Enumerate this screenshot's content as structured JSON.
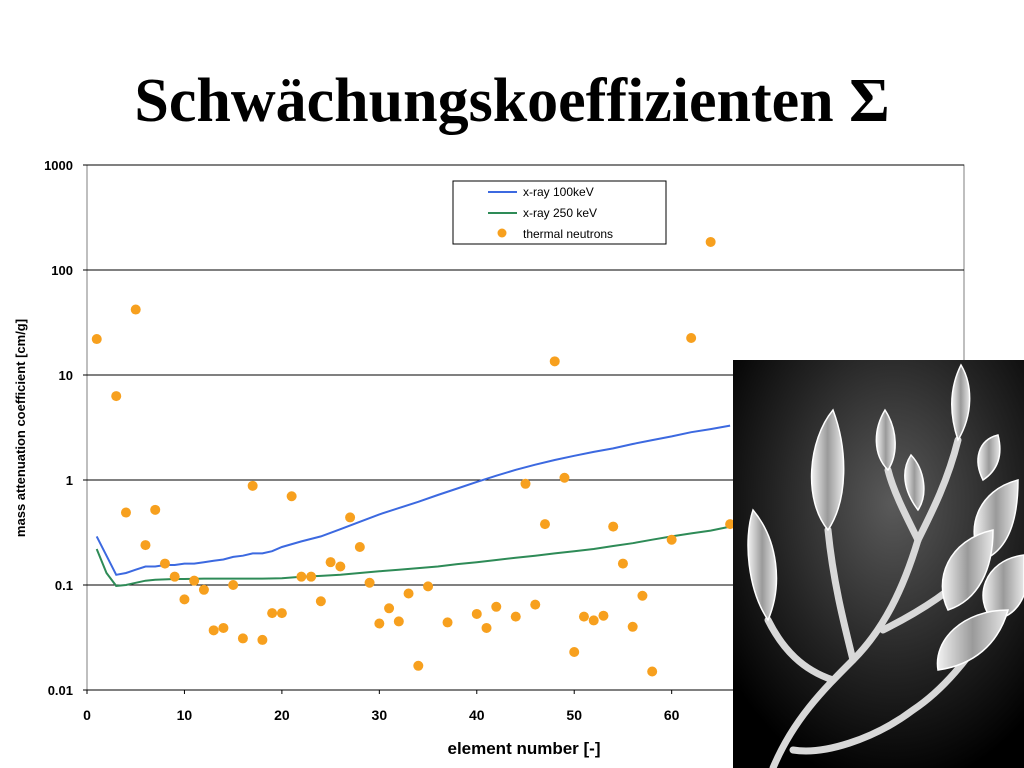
{
  "slide": {
    "title": "Schwächungskoeffizienten Σ"
  },
  "colors": {
    "background": "#ffffff",
    "xray100": "#3c69e0",
    "xray250": "#2e8b57",
    "neutrons": "#f7a01e",
    "grid": "#000000"
  },
  "chart_data": {
    "type": "scatter",
    "xlabel": "element number [-]",
    "ylabel": "mass attenuation coefficient [cm/g]",
    "xlim": [
      0,
      90
    ],
    "ylim": [
      0.01,
      1000
    ],
    "yscale": "log",
    "x_ticks": [
      "0",
      "10",
      "20",
      "30",
      "40",
      "50",
      "60"
    ],
    "y_ticks": [
      "1000",
      "100",
      "10",
      "1",
      "0.1",
      "0.01"
    ],
    "grid": "horizontal",
    "legend_position": "top-right",
    "series": [
      {
        "name": "x-ray 100keV",
        "type": "line",
        "x": [
          1,
          2,
          3,
          4,
          5,
          6,
          7,
          8,
          9,
          10,
          11,
          12,
          13,
          14,
          15,
          16,
          17,
          18,
          19,
          20,
          22,
          24,
          26,
          28,
          30,
          32,
          34,
          36,
          38,
          40,
          42,
          44,
          46,
          48,
          50,
          52,
          54,
          56,
          58,
          60,
          62,
          64,
          66
        ],
        "y": [
          0.29,
          0.19,
          0.125,
          0.13,
          0.14,
          0.15,
          0.15,
          0.155,
          0.155,
          0.16,
          0.16,
          0.165,
          0.17,
          0.175,
          0.185,
          0.19,
          0.2,
          0.2,
          0.21,
          0.23,
          0.26,
          0.29,
          0.34,
          0.4,
          0.47,
          0.54,
          0.62,
          0.72,
          0.83,
          0.96,
          1.1,
          1.25,
          1.4,
          1.55,
          1.7,
          1.85,
          2.0,
          2.2,
          2.4,
          2.6,
          2.85,
          3.05,
          3.3
        ]
      },
      {
        "name": "x-ray 250 keV",
        "type": "line",
        "x": [
          1,
          2,
          3,
          4,
          5,
          6,
          7,
          8,
          9,
          10,
          12,
          14,
          16,
          18,
          20,
          22,
          24,
          26,
          28,
          30,
          32,
          34,
          36,
          38,
          40,
          42,
          44,
          46,
          48,
          50,
          52,
          54,
          56,
          58,
          60,
          62,
          64,
          66
        ],
        "y": [
          0.22,
          0.13,
          0.098,
          0.1,
          0.105,
          0.11,
          0.112,
          0.113,
          0.114,
          0.114,
          0.115,
          0.115,
          0.115,
          0.115,
          0.116,
          0.12,
          0.122,
          0.125,
          0.13,
          0.135,
          0.14,
          0.145,
          0.15,
          0.158,
          0.165,
          0.173,
          0.182,
          0.19,
          0.2,
          0.21,
          0.22,
          0.235,
          0.25,
          0.27,
          0.29,
          0.31,
          0.33,
          0.36
        ]
      },
      {
        "name": "thermal neutrons",
        "type": "scatter",
        "x": [
          1,
          3,
          4,
          5,
          6,
          7,
          8,
          9,
          10,
          11,
          12,
          13,
          14,
          15,
          16,
          17,
          18,
          19,
          20,
          21,
          22,
          23,
          24,
          25,
          26,
          27,
          28,
          29,
          30,
          31,
          32,
          33,
          34,
          35,
          37,
          40,
          41,
          42,
          44,
          45,
          46,
          47,
          48,
          49,
          50,
          51,
          52,
          53,
          54,
          55,
          56,
          57,
          58,
          60,
          62,
          64,
          66
        ],
        "y": [
          22,
          6.3,
          0.49,
          42,
          0.24,
          0.52,
          0.16,
          0.12,
          0.073,
          0.11,
          0.09,
          0.037,
          0.039,
          0.1,
          0.031,
          0.88,
          0.03,
          0.054,
          0.054,
          0.7,
          0.12,
          0.12,
          0.07,
          0.165,
          0.15,
          0.44,
          0.23,
          0.105,
          0.043,
          0.06,
          0.045,
          0.083,
          0.017,
          0.097,
          0.044,
          0.053,
          0.039,
          0.062,
          0.05,
          0.92,
          0.065,
          0.38,
          13.5,
          1.05,
          0.023,
          0.05,
          0.046,
          0.051,
          0.36,
          0.16,
          0.04,
          0.079,
          0.015,
          0.27,
          22.5,
          185,
          0.38
        ]
      }
    ]
  },
  "photo": {
    "subject": "x-ray image of lily flowers",
    "icon": "lily-xray-photo"
  }
}
